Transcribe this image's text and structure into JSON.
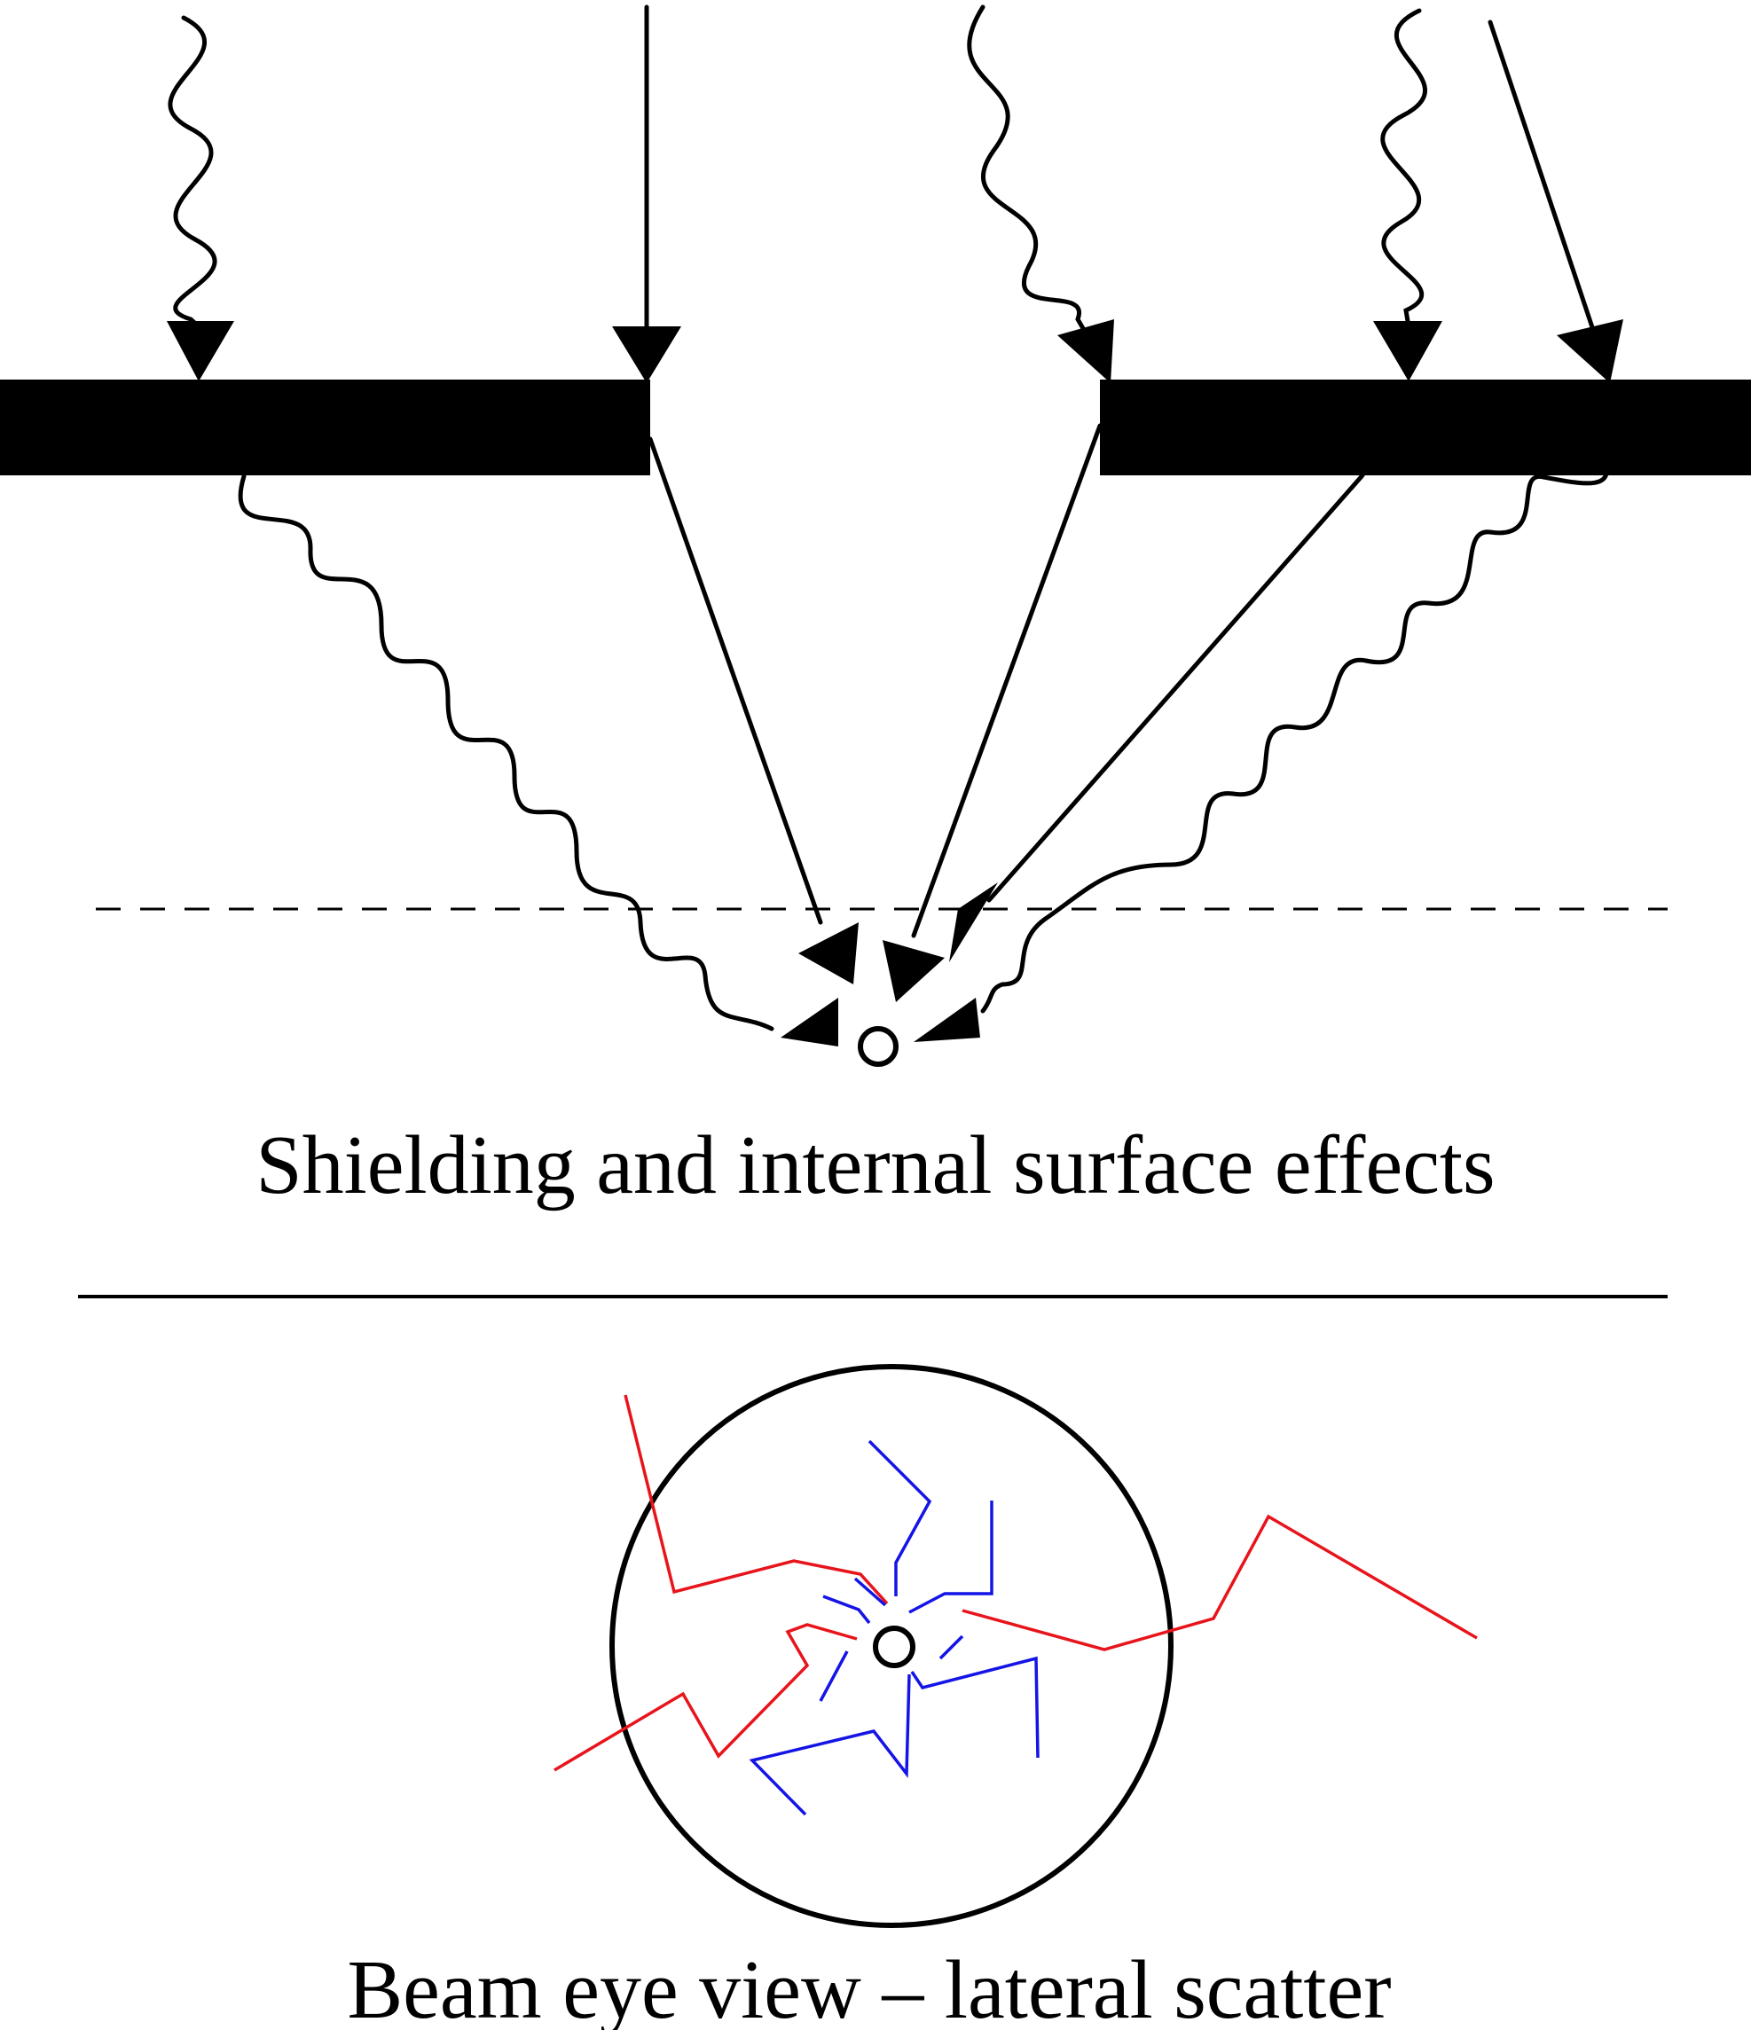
{
  "captions": {
    "top": "Shielding and internal surface effects",
    "bottom": "Beam eye view – lateral scatter"
  },
  "colors": {
    "ink": "#000000",
    "scatter_primary": "#e8141b",
    "scatter_secondary": "#1414e6"
  }
}
